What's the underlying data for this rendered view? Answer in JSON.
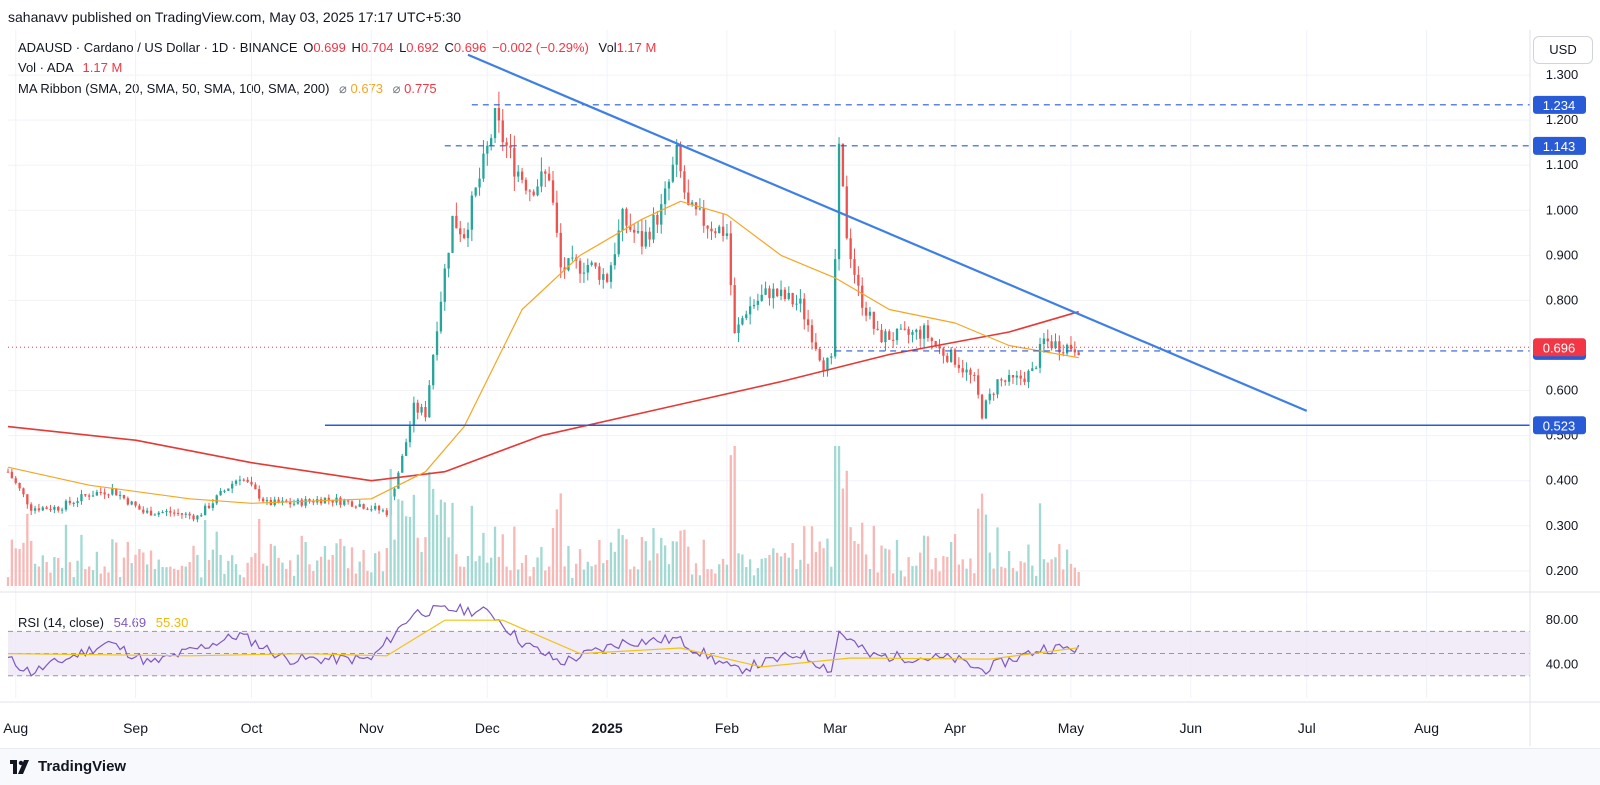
{
  "header": {
    "publisher": "sahanavv published on TradingView.com, May 03, 2025 17:17 UTC+5:30"
  },
  "legend": {
    "symbol": "ADAUSD · Cardano / US Dollar · 1D · BINANCE",
    "o_label": "O",
    "o_val": "0.699",
    "h_label": "H",
    "h_val": "0.704",
    "l_label": "L",
    "l_val": "0.692",
    "c_label": "C",
    "c_val": "0.696",
    "change": "−0.002 (−0.29%)",
    "vol_label": "Vol",
    "vol_val": "1.17 M",
    "vol_line_label": "Vol · ADA",
    "vol_line_val": "1.17 M",
    "ma_label": "MA Ribbon (SMA, 20, SMA, 50, SMA, 100, SMA, 200)",
    "ma_sym": "⌀",
    "ma_val_1": "0.673",
    "ma_val_2": "0.775",
    "rsi_label": "RSI (14, close)",
    "rsi_val_1": "54.69",
    "rsi_val_2": "55.30"
  },
  "axis": {
    "currency_button": "USD",
    "price_ticks": [
      "1.300",
      "1.200",
      "1.100",
      "1.000",
      "0.900",
      "0.800",
      "0.600",
      "0.500",
      "0.400",
      "0.300",
      "0.200"
    ],
    "price_tick_values": [
      1.3,
      1.2,
      1.1,
      1.0,
      0.9,
      0.8,
      0.6,
      0.5,
      0.4,
      0.3,
      0.2
    ],
    "rsi_ticks": [
      "80.00",
      "40.00"
    ],
    "rsi_tick_values": [
      80,
      40
    ],
    "time_labels": [
      "Aug",
      "Sep",
      "Oct",
      "Nov",
      "Dec",
      "2025",
      "Feb",
      "Mar",
      "Apr",
      "May",
      "Jun",
      "Jul",
      "Aug"
    ]
  },
  "chart_data": {
    "type": "candlestick",
    "x_start": "2024-07-30",
    "x_end": "2025-08-20",
    "ylim": [
      0.162,
      1.4
    ],
    "rsi_ylim": [
      10,
      100
    ],
    "rsi_bands": [
      70,
      50,
      30
    ],
    "time_label_dates": [
      "2024-08-01",
      "2024-09-01",
      "2024-10-01",
      "2024-11-01",
      "2024-12-01",
      "2025-01-01",
      "2025-02-01",
      "2025-03-01",
      "2025-04-01",
      "2025-05-01",
      "2025-06-01",
      "2025-07-01",
      "2025-08-01"
    ],
    "horizontal_levels": [
      {
        "label": "1.234",
        "value": 1.234,
        "style": "dashed",
        "from": "2024-11-27"
      },
      {
        "label": "1.143",
        "value": 1.143,
        "style": "dashed",
        "from": "2024-11-20"
      },
      {
        "label": "0.688",
        "value": 0.688,
        "style": "dashed",
        "from": "2025-03-01"
      },
      {
        "label": "0.523",
        "value": 0.523,
        "style": "solid",
        "from": "2024-10-20"
      }
    ],
    "current_price": {
      "label": "0.696",
      "value": 0.696
    },
    "trendline": {
      "from": [
        "2024-11-26",
        1.345
      ],
      "to": [
        "2025-07-01",
        0.555
      ]
    },
    "price_path": [
      [
        "2024-07-30",
        0.42
      ],
      [
        "2024-08-05",
        0.34
      ],
      [
        "2024-08-12",
        0.34
      ],
      [
        "2024-08-20",
        0.37
      ],
      [
        "2024-08-26",
        0.38
      ],
      [
        "2024-09-03",
        0.33
      ],
      [
        "2024-09-10",
        0.33
      ],
      [
        "2024-09-17",
        0.32
      ],
      [
        "2024-09-23",
        0.37
      ],
      [
        "2024-09-28",
        0.41
      ],
      [
        "2024-10-05",
        0.35
      ],
      [
        "2024-10-12",
        0.35
      ],
      [
        "2024-10-20",
        0.36
      ],
      [
        "2024-10-28",
        0.35
      ],
      [
        "2024-11-05",
        0.33
      ],
      [
        "2024-11-09",
        0.45
      ],
      [
        "2024-11-12",
        0.56
      ],
      [
        "2024-11-15",
        0.55
      ],
      [
        "2024-11-18",
        0.75
      ],
      [
        "2024-11-22",
        0.98
      ],
      [
        "2024-11-25",
        0.95
      ],
      [
        "2024-11-30",
        1.1
      ],
      [
        "2024-12-03",
        1.2
      ],
      [
        "2024-12-08",
        1.1
      ],
      [
        "2024-12-12",
        1.05
      ],
      [
        "2024-12-17",
        1.08
      ],
      [
        "2024-12-20",
        0.87
      ],
      [
        "2024-12-27",
        0.88
      ],
      [
        "2025-01-01",
        0.85
      ],
      [
        "2025-01-05",
        0.98
      ],
      [
        "2025-01-10",
        0.93
      ],
      [
        "2025-01-15",
        1.0
      ],
      [
        "2025-01-19",
        1.12
      ],
      [
        "2025-01-22",
        1.0
      ],
      [
        "2025-01-27",
        0.97
      ],
      [
        "2025-02-01",
        0.95
      ],
      [
        "2025-02-03",
        0.72
      ],
      [
        "2025-02-06",
        0.78
      ],
      [
        "2025-02-12",
        0.82
      ],
      [
        "2025-02-20",
        0.79
      ],
      [
        "2025-02-26",
        0.66
      ],
      [
        "2025-02-28",
        0.66
      ],
      [
        "2025-03-02",
        1.12
      ],
      [
        "2025-03-04",
        0.95
      ],
      [
        "2025-03-07",
        0.82
      ],
      [
        "2025-03-12",
        0.72
      ],
      [
        "2025-03-18",
        0.72
      ],
      [
        "2025-03-24",
        0.73
      ],
      [
        "2025-03-28",
        0.69
      ],
      [
        "2025-04-01",
        0.67
      ],
      [
        "2025-04-06",
        0.62
      ],
      [
        "2025-04-08",
        0.55
      ],
      [
        "2025-04-12",
        0.62
      ],
      [
        "2025-04-16",
        0.62
      ],
      [
        "2025-04-21",
        0.64
      ],
      [
        "2025-04-24",
        0.71
      ],
      [
        "2025-04-28",
        0.7
      ],
      [
        "2025-05-03",
        0.696
      ]
    ],
    "ma_50_path": [
      [
        "2024-07-30",
        0.43
      ],
      [
        "2024-08-20",
        0.39
      ],
      [
        "2024-09-15",
        0.36
      ],
      [
        "2024-10-01",
        0.35
      ],
      [
        "2024-11-01",
        0.36
      ],
      [
        "2024-11-15",
        0.42
      ],
      [
        "2024-11-25",
        0.52
      ],
      [
        "2024-12-10",
        0.78
      ],
      [
        "2024-12-25",
        0.9
      ],
      [
        "2025-01-10",
        0.98
      ],
      [
        "2025-01-20",
        1.02
      ],
      [
        "2025-02-01",
        0.99
      ],
      [
        "2025-02-15",
        0.9
      ],
      [
        "2025-03-01",
        0.85
      ],
      [
        "2025-03-15",
        0.78
      ],
      [
        "2025-04-01",
        0.75
      ],
      [
        "2025-04-15",
        0.7
      ],
      [
        "2025-05-03",
        0.673
      ]
    ],
    "ma_200_path": [
      [
        "2024-07-30",
        0.52
      ],
      [
        "2024-09-01",
        0.49
      ],
      [
        "2024-10-01",
        0.44
      ],
      [
        "2024-11-01",
        0.4
      ],
      [
        "2024-11-20",
        0.42
      ],
      [
        "2024-12-15",
        0.5
      ],
      [
        "2025-01-15",
        0.56
      ],
      [
        "2025-02-15",
        0.62
      ],
      [
        "2025-03-15",
        0.68
      ],
      [
        "2025-04-15",
        0.73
      ],
      [
        "2025-05-03",
        0.775
      ]
    ],
    "rsi_path": [
      [
        "2024-07-30",
        45
      ],
      [
        "2024-08-05",
        33
      ],
      [
        "2024-08-25",
        60
      ],
      [
        "2024-09-05",
        41
      ],
      [
        "2024-09-28",
        67
      ],
      [
        "2024-10-10",
        45
      ],
      [
        "2024-11-01",
        45
      ],
      [
        "2024-11-12",
        87
      ],
      [
        "2024-11-22",
        90
      ],
      [
        "2024-12-02",
        87
      ],
      [
        "2024-12-10",
        60
      ],
      [
        "2024-12-20",
        42
      ],
      [
        "2025-01-05",
        60
      ],
      [
        "2025-01-19",
        63
      ],
      [
        "2025-02-03",
        35
      ],
      [
        "2025-02-20",
        50
      ],
      [
        "2025-02-28",
        35
      ],
      [
        "2025-03-02",
        70
      ],
      [
        "2025-03-10",
        48
      ],
      [
        "2025-04-01",
        45
      ],
      [
        "2025-04-08",
        35
      ],
      [
        "2025-04-24",
        55
      ],
      [
        "2025-05-03",
        54.69
      ]
    ],
    "rsi_ma_path": [
      [
        "2024-07-30",
        50
      ],
      [
        "2024-09-15",
        48
      ],
      [
        "2024-10-15",
        50
      ],
      [
        "2024-11-05",
        48
      ],
      [
        "2024-11-20",
        80
      ],
      [
        "2024-12-05",
        80
      ],
      [
        "2024-12-25",
        50
      ],
      [
        "2025-01-20",
        55
      ],
      [
        "2025-02-10",
        38
      ],
      [
        "2025-03-05",
        46
      ],
      [
        "2025-04-10",
        45
      ],
      [
        "2025-05-03",
        55.3
      ]
    ]
  },
  "footer": {
    "brand": "TradingView"
  },
  "colors": {
    "up": "#26a69a",
    "down": "#ef5350",
    "trend": "#3d7fe6",
    "level": "#2a5bd7",
    "ma50": "#f5a623",
    "ma200": "#e53935",
    "rsi": "#7e57c2",
    "rsi_ma": "#f0c419",
    "rsi_band": "#ede7f6",
    "current": "#f23645"
  }
}
